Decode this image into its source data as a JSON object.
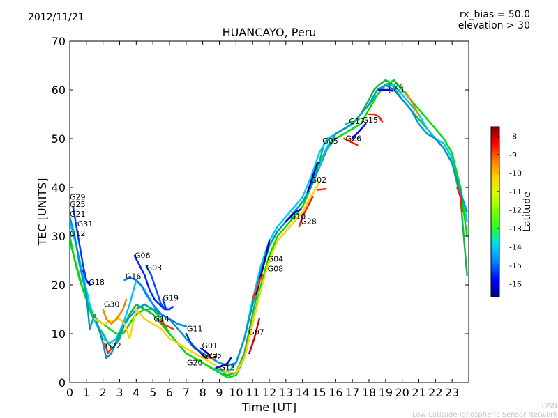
{
  "header": {
    "date": "2012/11/21",
    "bias": "rx_bias = 50.0",
    "elevation": "elevation > 30"
  },
  "footer": {
    "org_short": "LISN",
    "org_long": "Low-Latitude Ionospheric Sensor Network"
  },
  "chart_data": {
    "type": "line",
    "title": "HUANCAYO, Peru",
    "xlabel": "Time [UT]",
    "ylabel": "TEC [UNITS]",
    "xlim": [
      0,
      24
    ],
    "ylim": [
      0,
      70
    ],
    "xticks": [
      "0",
      "1",
      "2",
      "3",
      "4",
      "5",
      "6",
      "7",
      "8",
      "9",
      "10",
      "11",
      "12",
      "13",
      "14",
      "15",
      "16",
      "17",
      "18",
      "19",
      "20",
      "21",
      "22",
      "23"
    ],
    "yticks": [
      0,
      10,
      20,
      30,
      40,
      50,
      60,
      70
    ],
    "colorbar": {
      "label": "Latitude",
      "range": [
        -16.7,
        -7.5
      ],
      "ticks": [
        -8,
        -9,
        -10,
        -11,
        -12,
        -13,
        -14,
        -15,
        -16
      ],
      "colors": [
        "#00007f",
        "#0000ff",
        "#007fff",
        "#00d4ff",
        "#21ff31",
        "#7fff00",
        "#d4ff00",
        "#ffd400",
        "#ff7f00",
        "#ff0000",
        "#7f0000"
      ]
    },
    "series": [
      {
        "name": "G29-1",
        "color": "#21b04a",
        "x": [
          0,
          0.3,
          0.6,
          1.0,
          1.3,
          1.6,
          2.0,
          2.3,
          2.6,
          3.0,
          3.3,
          3.6,
          4.0,
          4.5,
          5.0,
          5.5,
          6.0,
          6.5,
          7.0,
          7.5,
          8.0,
          8.5,
          9.0,
          9.5,
          10.0,
          10.5,
          11.0,
          11.5,
          12.0,
          12.5,
          13.0,
          13.5,
          14.0,
          14.5,
          15.0,
          15.3,
          15.6,
          16.0,
          16.5,
          17.0,
          17.5,
          18.0,
          18.3,
          18.6,
          19.0,
          19.3,
          19.6,
          20.0,
          20.5,
          21.0,
          21.5,
          22.0,
          22.5,
          23.0,
          23.5,
          23.9
        ],
        "y": [
          30,
          25,
          21,
          17,
          14,
          12,
          10,
          8,
          7,
          9,
          12,
          14,
          16,
          15,
          14,
          12,
          10,
          8,
          6,
          5,
          4,
          3,
          2,
          1.5,
          2,
          6,
          14,
          22,
          28,
          31,
          33,
          35,
          37,
          40,
          45,
          49,
          50,
          51,
          52,
          53,
          55,
          58,
          60,
          61,
          62,
          61.5,
          60,
          58,
          56,
          54,
          52,
          50,
          48,
          45,
          38,
          22
        ]
      },
      {
        "name": "G29-2",
        "color": "#00c8ff",
        "x": [
          0,
          0.4,
          0.8,
          1.2,
          1.6,
          2.0,
          2.4,
          2.8,
          3.2,
          3.6,
          4.0,
          4.5,
          5.0,
          5.5,
          6.0,
          6.5,
          7.0,
          7.5,
          8.0,
          8.5,
          9.0,
          9.5,
          10.0,
          10.5,
          11.0,
          11.5,
          12.0,
          12.5,
          13.0,
          13.5,
          14.0,
          14.5,
          15.0,
          15.5,
          16.0,
          16.5,
          17.0,
          17.5,
          18.0,
          18.5,
          19.0,
          19.5,
          20.0,
          20.5,
          21.0,
          21.5,
          22.0,
          22.5,
          23.0,
          23.5,
          23.9
        ],
        "y": [
          33,
          28,
          22,
          16,
          12,
          9,
          8,
          9,
          12,
          16,
          21,
          19,
          16,
          13,
          10,
          8,
          6,
          5,
          4,
          3,
          2.5,
          2,
          4,
          9,
          17,
          24,
          29,
          32,
          34,
          36,
          38,
          42,
          47,
          50,
          51,
          52,
          53,
          55,
          57,
          59,
          61,
          61,
          59,
          57,
          55,
          52,
          50,
          49,
          46,
          40,
          33
        ]
      },
      {
        "name": "G12-1",
        "color": "#00e000",
        "x": [
          0,
          0.4,
          0.8,
          1.2,
          1.6,
          2.0,
          2.4,
          2.8,
          3.2,
          3.6,
          4.0,
          4.5,
          5.0,
          5.5,
          6.0,
          6.5,
          7.0,
          7.5,
          8.0,
          8.5,
          9.0,
          9.5,
          10.0,
          10.5,
          11.0,
          11.5,
          12.0,
          12.5,
          13.0,
          13.5,
          14.0,
          14.5,
          15.0,
          15.5,
          16.0,
          16.5,
          17.0,
          17.5,
          18.0,
          18.5,
          19.0,
          19.5,
          20.0,
          20.5,
          21.0,
          21.5,
          22.0,
          22.5,
          23.0,
          23.5,
          23.9
        ],
        "y": [
          29,
          24,
          19,
          15,
          13,
          12,
          11,
          10,
          10,
          12,
          14,
          15,
          15,
          13,
          10,
          8,
          6,
          5,
          4,
          3,
          2,
          1,
          1.5,
          5,
          12,
          20,
          26,
          30,
          32,
          34,
          36,
          40,
          45,
          48,
          50,
          51,
          52,
          53,
          56,
          59,
          61,
          62,
          60,
          58,
          56,
          54,
          52,
          50,
          47,
          40,
          30
        ]
      },
      {
        "name": "G21-1",
        "color": "#0096c8",
        "x": [
          0,
          0.3,
          0.6,
          1.0,
          1.2,
          1.5,
          2.0,
          2.2,
          2.5,
          3.0,
          3.5,
          4.0,
          4.5,
          5.0,
          5.5,
          6.0,
          6.5,
          7.0,
          7.5,
          8.0,
          8.5,
          9.0,
          9.5,
          10.0,
          10.5,
          11.0,
          11.5,
          12.0,
          12.5,
          13.0,
          13.5,
          14.0,
          14.5,
          15.0,
          15.5,
          16.0,
          16.5,
          17.0,
          17.5,
          18.0,
          18.5,
          19.0,
          19.5,
          20.0,
          20.5,
          21.0,
          21.5,
          22.0,
          22.5,
          23.0,
          23.5,
          23.9
        ],
        "y": [
          34,
          30,
          24,
          18,
          11,
          14,
          8,
          5,
          6,
          10,
          13,
          15,
          16,
          15,
          14,
          13,
          11,
          9,
          7,
          6,
          5,
          4,
          3.5,
          4,
          9,
          16,
          23,
          28,
          31,
          33,
          35,
          37,
          40,
          44,
          48,
          51,
          52,
          53,
          55,
          57,
          60,
          61,
          60,
          58,
          56,
          53,
          51,
          50,
          48,
          45,
          39,
          35
        ]
      },
      {
        "name": "G25",
        "color": "#ffd400",
        "x": [
          1.5,
          2.0,
          2.5,
          3.0,
          3.3,
          3.6,
          4.0,
          4.5,
          5.0,
          5.5,
          6.0,
          6.5,
          7.0,
          7.5,
          8.0,
          8.5,
          9.0,
          9.5,
          10.0,
          10.5,
          11.0,
          11.5,
          12.0,
          12.5,
          13.0,
          13.5,
          14.0,
          14.5,
          15.0
        ],
        "y": [
          13,
          12,
          12.5,
          13,
          12,
          9,
          15,
          13,
          12,
          11,
          9,
          8,
          7,
          6,
          5,
          4,
          3,
          2,
          2,
          5,
          12,
          19,
          25,
          29,
          31,
          33,
          35,
          38,
          41
        ]
      },
      {
        "name": "G30",
        "color": "#ff8000",
        "x": [
          2.0,
          2.2,
          2.5,
          2.8,
          3.0,
          3.2,
          3.4
        ],
        "y": [
          15,
          13,
          12,
          13,
          14,
          15,
          17
        ]
      },
      {
        "name": "G22",
        "color": "#ff3000",
        "x": [
          2.1,
          2.3,
          2.5
        ],
        "y": [
          8,
          6,
          7
        ]
      },
      {
        "name": "G18",
        "color": "#0000ff",
        "x": [
          0.8,
          1.0,
          1.2
        ],
        "y": [
          23,
          21,
          20
        ]
      },
      {
        "name": "G31",
        "color": "#0040ff",
        "x": [
          0.2,
          0.4,
          0.6,
          0.8,
          1.0
        ],
        "y": [
          36,
          32,
          28,
          24,
          21
        ]
      },
      {
        "name": "G16",
        "color": "#007fff",
        "x": [
          3.3,
          3.6,
          4.0,
          4.3,
          4.6,
          5.0,
          5.5,
          6.0,
          6.5,
          7.0
        ],
        "y": [
          21,
          21.5,
          21,
          20,
          18,
          16,
          14,
          13,
          12,
          11.5
        ]
      },
      {
        "name": "G06",
        "color": "#0020ff",
        "x": [
          3.9,
          4.2,
          4.5,
          4.8,
          5.1,
          5.4,
          5.7,
          6.0
        ],
        "y": [
          26,
          24,
          22,
          19,
          17,
          16,
          15,
          15
        ]
      },
      {
        "name": "G03",
        "color": "#0050ff",
        "x": [
          4.6,
          4.9,
          5.2,
          5.5,
          5.8
        ],
        "y": [
          24,
          22,
          19,
          16,
          15
        ]
      },
      {
        "name": "G19",
        "color": "#0030ff",
        "x": [
          5.6,
          5.8,
          6.0,
          6.2
        ],
        "y": [
          17,
          15,
          15,
          15.5
        ]
      },
      {
        "name": "G14",
        "color": "#ff3000",
        "x": [
          5.3,
          5.6,
          5.9,
          6.2
        ],
        "y": [
          13,
          12,
          11.5,
          11
        ]
      },
      {
        "name": "G11",
        "color": "#0030ff",
        "x": [
          7.0,
          7.3,
          7.6,
          7.9,
          8.2
        ],
        "y": [
          10,
          8,
          7,
          6,
          5
        ]
      },
      {
        "name": "G01",
        "color": "#0000c0",
        "x": [
          7.9,
          8.1,
          8.3,
          8.5
        ],
        "y": [
          7,
          6.5,
          6,
          5
        ]
      },
      {
        "name": "G32",
        "color": "#ff2000",
        "x": [
          8.2,
          8.5,
          8.8
        ],
        "y": [
          5.5,
          5,
          5.2
        ]
      },
      {
        "name": "G23",
        "color": "#0000ff",
        "x": [
          8.8,
          9.0,
          9.3,
          9.5,
          9.7
        ],
        "y": [
          3,
          3.2,
          3.5,
          4,
          5
        ]
      },
      {
        "name": "G07",
        "color": "#c80000",
        "x": [
          10.8,
          11.1,
          11.4
        ],
        "y": [
          6,
          9,
          13
        ]
      },
      {
        "name": "G04",
        "color": "#0000a0",
        "x": [
          11.2,
          11.5,
          11.8,
          12.0
        ],
        "y": [
          18,
          22,
          26,
          29
        ]
      },
      {
        "name": "G08",
        "color": "#ff4000",
        "x": [
          11.0,
          11.3,
          11.6
        ],
        "y": [
          17,
          20,
          22
        ]
      },
      {
        "name": "G10",
        "color": "#0000ff",
        "x": [
          13.0,
          13.3,
          13.6,
          13.9
        ],
        "y": [
          33,
          34,
          35,
          35.5
        ]
      },
      {
        "name": "G28",
        "color": "#ff2000",
        "x": [
          13.8,
          14.0,
          14.3,
          14.6
        ],
        "y": [
          32,
          34,
          36,
          38
        ]
      },
      {
        "name": "G02",
        "color": "#0000c0",
        "x": [
          14.3,
          14.6,
          14.9,
          15.0
        ],
        "y": [
          39,
          42,
          45,
          45
        ]
      },
      {
        "name": "G02b",
        "color": "#ff2000",
        "x": [
          14.9,
          15.2,
          15.4
        ],
        "y": [
          39.5,
          39.6,
          39.7
        ]
      },
      {
        "name": "G05",
        "color": "#00c0ff",
        "x": [
          15.0,
          15.3,
          15.6,
          16.0
        ],
        "y": [
          44,
          47,
          49,
          50
        ]
      },
      {
        "name": "G26",
        "color": "#ff2000",
        "x": [
          16.5,
          16.8,
          17.1,
          17.3
        ],
        "y": [
          50,
          49.5,
          49,
          48.7
        ]
      },
      {
        "name": "G17",
        "color": "#00d060",
        "x": [
          16.6,
          17.0,
          17.4
        ],
        "y": [
          53,
          53.5,
          54
        ]
      },
      {
        "name": "G15",
        "color": "#0000ff",
        "x": [
          17.0,
          17.4,
          17.8
        ],
        "y": [
          50,
          51.5,
          53
        ]
      },
      {
        "name": "G15b",
        "color": "#ff2000",
        "x": [
          18.0,
          18.3,
          18.6,
          18.8
        ],
        "y": [
          55,
          55,
          54.5,
          53.5
        ]
      },
      {
        "name": "G09",
        "color": "#0000ff",
        "x": [
          18.6,
          18.9,
          19.2,
          19.4
        ],
        "y": [
          60,
          60,
          60,
          59.8
        ]
      },
      {
        "name": "G24",
        "color": "#ff8000",
        "x": [
          20.2,
          20.5,
          20.8,
          21.0
        ],
        "y": [
          59.5,
          58,
          56,
          55
        ]
      },
      {
        "name": "G24b",
        "color": "#ff2000",
        "x": [
          23.3,
          23.5,
          23.6
        ],
        "y": [
          40,
          38,
          35
        ]
      }
    ],
    "annotations": [
      {
        "text": "G29",
        "x": 0.0,
        "y": 37.5
      },
      {
        "text": "G25",
        "x": 0.0,
        "y": 36.0
      },
      {
        "text": "G21",
        "x": 0.0,
        "y": 34.0
      },
      {
        "text": "G31",
        "x": 0.45,
        "y": 32.0
      },
      {
        "text": "G12",
        "x": 0.0,
        "y": 30.0
      },
      {
        "text": "G18",
        "x": 1.15,
        "y": 20.0
      },
      {
        "text": "G30",
        "x": 2.05,
        "y": 15.5
      },
      {
        "text": "G22",
        "x": 2.15,
        "y": 7.0
      },
      {
        "text": "G06",
        "x": 3.9,
        "y": 25.5
      },
      {
        "text": "G03",
        "x": 4.6,
        "y": 23.0
      },
      {
        "text": "G16",
        "x": 3.35,
        "y": 21.2
      },
      {
        "text": "G19",
        "x": 5.6,
        "y": 16.8
      },
      {
        "text": "G14",
        "x": 5.05,
        "y": 12.5
      },
      {
        "text": "G11",
        "x": 7.05,
        "y": 10.5
      },
      {
        "text": "G01",
        "x": 7.95,
        "y": 7.0
      },
      {
        "text": "G23",
        "x": 7.95,
        "y": 5.0
      },
      {
        "text": "G32",
        "x": 8.2,
        "y": 4.7
      },
      {
        "text": "G20",
        "x": 7.05,
        "y": 3.5
      },
      {
        "text": "G13",
        "x": 9.0,
        "y": 2.5
      },
      {
        "text": "G07",
        "x": 10.75,
        "y": 9.8
      },
      {
        "text": "G04",
        "x": 11.9,
        "y": 24.8
      },
      {
        "text": "G08",
        "x": 11.9,
        "y": 22.8
      },
      {
        "text": "G10",
        "x": 13.25,
        "y": 33.5
      },
      {
        "text": "G28",
        "x": 13.9,
        "y": 32.5
      },
      {
        "text": "G02",
        "x": 14.5,
        "y": 41.0
      },
      {
        "text": "G05",
        "x": 15.2,
        "y": 49.0
      },
      {
        "text": "G26",
        "x": 16.6,
        "y": 49.5
      },
      {
        "text": "G17",
        "x": 16.8,
        "y": 53.0
      },
      {
        "text": "G15",
        "x": 17.6,
        "y": 53.3
      },
      {
        "text": "G24",
        "x": 19.15,
        "y": 60.2
      },
      {
        "text": "G09",
        "x": 19.15,
        "y": 59.3
      }
    ]
  }
}
